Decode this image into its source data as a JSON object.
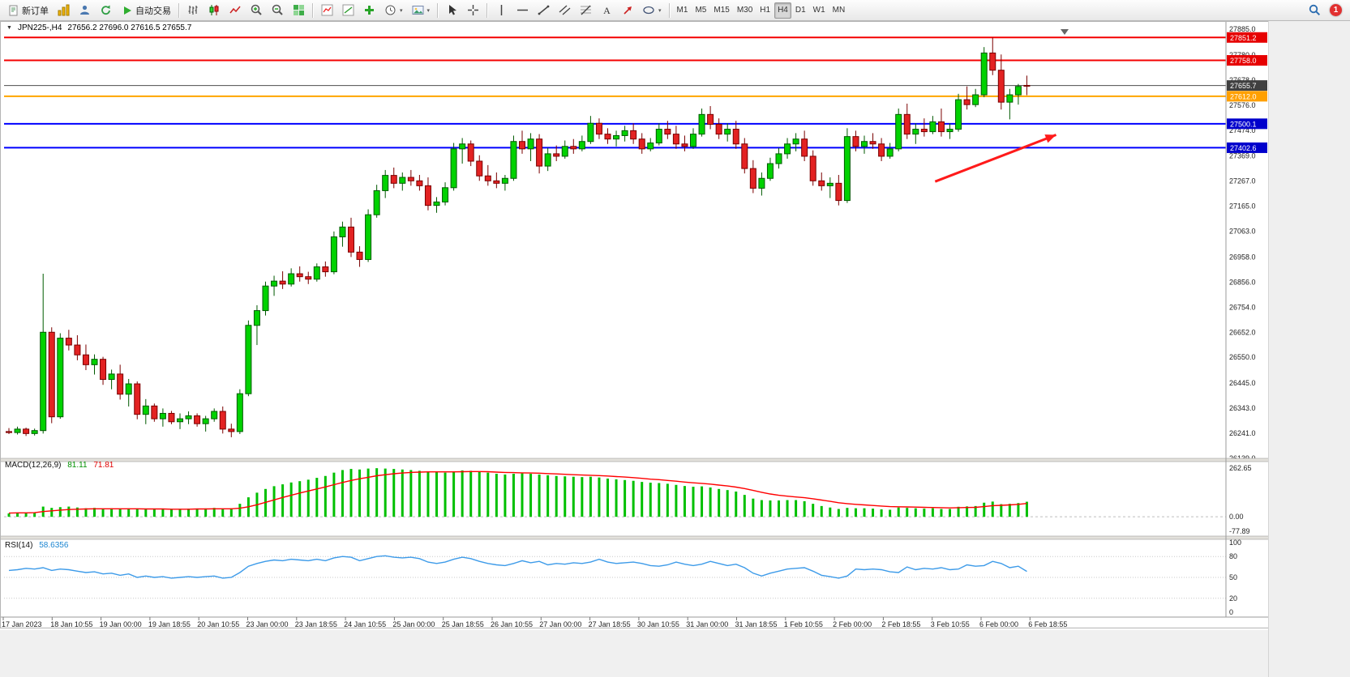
{
  "toolbar": {
    "new_order_label": "新订单",
    "auto_trading_label": "自动交易",
    "left_icons": [
      "new-chart-icon",
      "profiles-icon",
      "refresh-icon"
    ],
    "chart_type_icons": [
      "bars-chart-icon",
      "candlestick-chart-icon",
      "line-chart-icon"
    ],
    "zoom_icons": [
      "zoom-in-icon",
      "zoom-out-icon",
      "tile-windows-icon"
    ],
    "panel_icons": [
      "indicators-icon",
      "objects-icon",
      "add-indicator-icon",
      "periods-icon",
      "templates-icon"
    ],
    "pointer_icons": [
      "cursor-icon",
      "crosshair-icon"
    ],
    "drawing_icons": [
      "vertical-line-icon",
      "horizontal-line-icon",
      "trendline-icon",
      "channel-icon",
      "fibonacci-icon",
      "text-icon",
      "arrows-icon",
      "shapes-icon"
    ],
    "timeframes": [
      "M1",
      "M5",
      "M15",
      "M30",
      "H1",
      "H4",
      "D1",
      "W1",
      "MN"
    ],
    "active_timeframe": "H4",
    "right_icons": [
      "search-icon"
    ],
    "notification_count": "1"
  },
  "chart": {
    "title": "JPN225-,H4",
    "ohlc": "27656.2 27696.0 27616.5 27655.7"
  },
  "chart_data": {
    "type": "candlestick",
    "symbol": "JPN225-",
    "timeframe": "H4",
    "current_ohlc": {
      "open": 27656.2,
      "high": 27696.0,
      "low": 27616.5,
      "close": 27655.7
    },
    "y_axis": {
      "min": 26139.0,
      "max": 27885.0,
      "gridline_labels": [
        "27885.0",
        "27780.0",
        "27678.0",
        "27576.0",
        "27474.0",
        "27369.0",
        "27267.0",
        "27165.0",
        "27063.0",
        "26958.0",
        "26856.0",
        "26754.0",
        "26652.0",
        "26550.0",
        "26445.0",
        "26343.0",
        "26241.0",
        "26139.0"
      ]
    },
    "price_lines": [
      {
        "value": 27851.2,
        "label": "27851.2",
        "color": "#f40000",
        "badge": "#e60000",
        "width": 2
      },
      {
        "value": 27758.0,
        "label": "27758.0",
        "color": "#f40000",
        "badge": "#e60000",
        "width": 2
      },
      {
        "value": 27655.7,
        "label": "27655.7",
        "color": "#4d4d4d",
        "badge": "#404040",
        "width": 1,
        "style": "bid"
      },
      {
        "value": 27612.0,
        "label": "27612.0",
        "color": "#ffa500",
        "badge": "#ffa000",
        "width": 2
      },
      {
        "value": 27500.1,
        "label": "27500.1",
        "color": "#0000ff",
        "badge": "#0000cc",
        "width": 2
      },
      {
        "value": 27402.6,
        "label": "27402.6",
        "color": "#0000ff",
        "badge": "#0000cc",
        "width": 2
      }
    ],
    "colors": {
      "bull": "#00d200",
      "bull_border": "#005a00",
      "bear": "#e32222",
      "bear_border": "#7a0000",
      "macd": "#00c000",
      "signal": "#ff0000",
      "rsi": "#3d9be9"
    },
    "candles": [
      [
        26248,
        26262,
        26238,
        26244
      ],
      [
        26244,
        26268,
        26236,
        26258
      ],
      [
        26258,
        26264,
        26230,
        26240
      ],
      [
        26240,
        26260,
        26232,
        26252
      ],
      [
        26252,
        26890,
        26240,
        26652
      ],
      [
        26652,
        26672,
        26282,
        26308
      ],
      [
        26308,
        26648,
        26300,
        26628
      ],
      [
        26628,
        26662,
        26578,
        26600
      ],
      [
        26600,
        26640,
        26538,
        26560
      ],
      [
        26560,
        26602,
        26498,
        26520
      ],
      [
        26520,
        26562,
        26480,
        26542
      ],
      [
        26542,
        26552,
        26438,
        26460
      ],
      [
        26460,
        26500,
        26420,
        26482
      ],
      [
        26482,
        26520,
        26378,
        26400
      ],
      [
        26400,
        26462,
        26350,
        26442
      ],
      [
        26442,
        26452,
        26298,
        26318
      ],
      [
        26318,
        26380,
        26278,
        26352
      ],
      [
        26352,
        26362,
        26288,
        26300
      ],
      [
        26300,
        26342,
        26268,
        26322
      ],
      [
        26322,
        26332,
        26278,
        26288
      ],
      [
        26288,
        26322,
        26258,
        26300
      ],
      [
        26300,
        26330,
        26278,
        26312
      ],
      [
        26312,
        26322,
        26268,
        26280
      ],
      [
        26280,
        26312,
        26248,
        26300
      ],
      [
        26300,
        26342,
        26288,
        26330
      ],
      [
        26330,
        26350,
        26240,
        26258
      ],
      [
        26258,
        26280,
        26225,
        26248
      ],
      [
        26248,
        26420,
        26238,
        26402
      ],
      [
        26402,
        26700,
        26392,
        26680
      ],
      [
        26680,
        26762,
        26600,
        26740
      ],
      [
        26740,
        26858,
        26720,
        26840
      ],
      [
        26840,
        26882,
        26800,
        26860
      ],
      [
        26860,
        26900,
        26828,
        26848
      ],
      [
        26848,
        26912,
        26838,
        26890
      ],
      [
        26890,
        26920,
        26858,
        26878
      ],
      [
        26878,
        26898,
        26848,
        26868
      ],
      [
        26868,
        26932,
        26858,
        26918
      ],
      [
        26918,
        26940,
        26878,
        26898
      ],
      [
        26898,
        27062,
        26888,
        27040
      ],
      [
        27040,
        27102,
        27000,
        27080
      ],
      [
        27080,
        27118,
        26958,
        26978
      ],
      [
        26978,
        27002,
        26918,
        26948
      ],
      [
        26948,
        27152,
        26938,
        27130
      ],
      [
        27130,
        27252,
        27118,
        27228
      ],
      [
        27228,
        27312,
        27198,
        27290
      ],
      [
        27290,
        27322,
        27238,
        27258
      ],
      [
        27258,
        27302,
        27228,
        27282
      ],
      [
        27282,
        27312,
        27248,
        27268
      ],
      [
        27268,
        27292,
        27228,
        27248
      ],
      [
        27248,
        27282,
        27148,
        27168
      ],
      [
        27168,
        27202,
        27138,
        27182
      ],
      [
        27182,
        27262,
        27168,
        27240
      ],
      [
        27240,
        27422,
        27228,
        27398
      ],
      [
        27398,
        27442,
        27338,
        27418
      ],
      [
        27418,
        27432,
        27328,
        27348
      ],
      [
        27348,
        27372,
        27268,
        27288
      ],
      [
        27288,
        27332,
        27248,
        27268
      ],
      [
        27268,
        27302,
        27238,
        27258
      ],
      [
        27258,
        27292,
        27228,
        27278
      ],
      [
        27278,
        27452,
        27268,
        27428
      ],
      [
        27428,
        27472,
        27378,
        27398
      ],
      [
        27398,
        27462,
        27348,
        27438
      ],
      [
        27438,
        27458,
        27298,
        27328
      ],
      [
        27328,
        27402,
        27308,
        27378
      ],
      [
        27378,
        27412,
        27348,
        27368
      ],
      [
        27368,
        27432,
        27358,
        27408
      ],
      [
        27408,
        27438,
        27378,
        27398
      ],
      [
        27398,
        27452,
        27388,
        27428
      ],
      [
        27428,
        27532,
        27418,
        27502
      ],
      [
        27502,
        27522,
        27438,
        27458
      ],
      [
        27458,
        27482,
        27418,
        27438
      ],
      [
        27438,
        27472,
        27408,
        27452
      ],
      [
        27452,
        27492,
        27428,
        27472
      ],
      [
        27472,
        27502,
        27418,
        27438
      ],
      [
        27438,
        27462,
        27378,
        27398
      ],
      [
        27398,
        27442,
        27388,
        27422
      ],
      [
        27422,
        27502,
        27412,
        27478
      ],
      [
        27478,
        27512,
        27438,
        27458
      ],
      [
        27458,
        27492,
        27398,
        27418
      ],
      [
        27418,
        27452,
        27388,
        27408
      ],
      [
        27408,
        27482,
        27398,
        27458
      ],
      [
        27458,
        27562,
        27448,
        27538
      ],
      [
        27538,
        27572,
        27478,
        27498
      ],
      [
        27498,
        27522,
        27438,
        27458
      ],
      [
        27458,
        27502,
        27428,
        27478
      ],
      [
        27478,
        27512,
        27398,
        27418
      ],
      [
        27418,
        27442,
        27298,
        27318
      ],
      [
        27318,
        27352,
        27218,
        27238
      ],
      [
        27238,
        27302,
        27208,
        27278
      ],
      [
        27278,
        27362,
        27268,
        27338
      ],
      [
        27338,
        27402,
        27318,
        27378
      ],
      [
        27378,
        27442,
        27358,
        27418
      ],
      [
        27418,
        27462,
        27388,
        27438
      ],
      [
        27438,
        27472,
        27348,
        27368
      ],
      [
        27368,
        27392,
        27248,
        27268
      ],
      [
        27268,
        27302,
        27228,
        27248
      ],
      [
        27248,
        27282,
        27198,
        27258
      ],
      [
        27258,
        27292,
        27168,
        27188
      ],
      [
        27188,
        27482,
        27178,
        27448
      ],
      [
        27448,
        27472,
        27388,
        27408
      ],
      [
        27408,
        27452,
        27378,
        27428
      ],
      [
        27428,
        27462,
        27398,
        27418
      ],
      [
        27418,
        27442,
        27348,
        27368
      ],
      [
        27368,
        27422,
        27358,
        27398
      ],
      [
        27398,
        27562,
        27388,
        27538
      ],
      [
        27538,
        27582,
        27438,
        27458
      ],
      [
        27458,
        27502,
        27418,
        27478
      ],
      [
        27478,
        27522,
        27448,
        27468
      ],
      [
        27468,
        27532,
        27458,
        27508
      ],
      [
        27508,
        27562,
        27448,
        27468
      ],
      [
        27468,
        27502,
        27438,
        27478
      ],
      [
        27478,
        27622,
        27468,
        27598
      ],
      [
        27598,
        27652,
        27558,
        27578
      ],
      [
        27578,
        27642,
        27568,
        27618
      ],
      [
        27618,
        27812,
        27608,
        27788
      ],
      [
        27788,
        27851.2,
        27698,
        27718
      ],
      [
        27718,
        27782,
        27558,
        27588
      ],
      [
        27588,
        27642,
        27518,
        27618
      ],
      [
        27618,
        27662,
        27578,
        27652
      ],
      [
        27656.2,
        27696,
        27616.5,
        27655.7
      ]
    ],
    "x_labels": [
      "17 Jan 2023",
      "18 Jan 10:55",
      "19 Jan 00:00",
      "19 Jan 18:55",
      "20 Jan 10:55",
      "23 Jan 00:00",
      "23 Jan 18:55",
      "24 Jan 10:55",
      "25 Jan 00:00",
      "25 Jan 18:55",
      "26 Jan 10:55",
      "27 Jan 00:00",
      "27 Jan 18:55",
      "30 Jan 10:55",
      "31 Jan 00:00",
      "31 Jan 18:55",
      "1 Feb 10:55",
      "2 Feb 00:00",
      "2 Feb 18:55",
      "3 Feb 10:55",
      "6 Feb 00:00",
      "6 Feb 18:55"
    ],
    "macd": {
      "label": "MACD(12,26,9)",
      "value_main": "81.11",
      "value_signal": "71.81",
      "max": 262.65,
      "min": -77.89,
      "scale_labels": [
        "262.65",
        "0.00",
        "-77.89"
      ],
      "histogram": [
        18,
        22,
        20,
        24,
        55,
        48,
        52,
        55,
        50,
        46,
        48,
        44,
        46,
        42,
        45,
        40,
        42,
        40,
        41,
        40,
        42,
        44,
        43,
        45,
        48,
        44,
        46,
        70,
        105,
        130,
        150,
        165,
        175,
        185,
        192,
        200,
        210,
        220,
        238,
        252,
        258,
        255,
        260,
        262,
        260,
        258,
        255,
        252,
        248,
        244,
        240,
        238,
        242,
        250,
        248,
        244,
        238,
        232,
        228,
        232,
        234,
        232,
        228,
        224,
        220,
        218,
        216,
        214,
        216,
        212,
        206,
        202,
        198,
        194,
        188,
        184,
        182,
        178,
        172,
        166,
        162,
        164,
        158,
        150,
        144,
        136,
        118,
        98,
        90,
        88,
        88,
        90,
        90,
        84,
        70,
        58,
        50,
        42,
        48,
        46,
        46,
        44,
        40,
        38,
        50,
        48,
        46,
        44,
        46,
        42,
        42,
        54,
        56,
        58,
        76,
        82,
        68,
        70,
        74,
        81.11
      ],
      "signal": [
        20,
        21,
        21,
        22,
        28,
        32,
        36,
        39,
        41,
        42,
        43,
        43,
        43,
        43,
        43,
        43,
        42,
        42,
        42,
        41,
        41,
        41,
        42,
        42,
        43,
        43,
        43,
        46,
        54,
        65,
        78,
        91,
        104,
        116,
        128,
        139,
        150,
        161,
        173,
        185,
        196,
        205,
        213,
        221,
        227,
        232,
        236,
        239,
        241,
        242,
        242,
        242,
        242,
        243,
        244,
        244,
        243,
        241,
        239,
        238,
        237,
        236,
        235,
        233,
        231,
        229,
        227,
        225,
        224,
        222,
        220,
        217,
        214,
        211,
        207,
        203,
        200,
        196,
        192,
        187,
        183,
        180,
        176,
        171,
        166,
        160,
        152,
        142,
        132,
        123,
        116,
        111,
        107,
        103,
        97,
        90,
        83,
        76,
        71,
        67,
        64,
        61,
        58,
        55,
        54,
        53,
        52,
        51,
        50,
        49,
        48,
        49,
        50,
        51,
        55,
        60,
        62,
        64,
        67,
        71.81
      ]
    },
    "rsi": {
      "label": "RSI(14)",
      "value": "58.6356",
      "levels": [
        80,
        50,
        20
      ],
      "scale_labels": [
        "100",
        "80",
        "50",
        "20",
        "0"
      ],
      "values": [
        60,
        61,
        63,
        62,
        64,
        60,
        62,
        61,
        59,
        57,
        58,
        55,
        56,
        53,
        55,
        50,
        52,
        50,
        51,
        49,
        50,
        51,
        50,
        51,
        52,
        49,
        50,
        57,
        66,
        70,
        73,
        75,
        74,
        76,
        75,
        74,
        76,
        74,
        78,
        80,
        79,
        74,
        77,
        80,
        81,
        79,
        78,
        79,
        77,
        72,
        70,
        72,
        76,
        79,
        77,
        73,
        70,
        68,
        67,
        70,
        74,
        71,
        73,
        68,
        70,
        69,
        71,
        70,
        72,
        76,
        72,
        70,
        71,
        72,
        70,
        67,
        66,
        68,
        72,
        69,
        67,
        69,
        73,
        70,
        67,
        69,
        64,
        56,
        52,
        56,
        59,
        62,
        63,
        64,
        59,
        53,
        51,
        49,
        52,
        62,
        61,
        62,
        61,
        58,
        57,
        65,
        61,
        63,
        62,
        64,
        61,
        62,
        68,
        66,
        67,
        73,
        70,
        64,
        66,
        58.64
      ]
    },
    "annotation_arrow": {
      "from": {
        "x": 0.762,
        "price": 27265
      },
      "to": {
        "x": 0.861,
        "price": 27455
      },
      "color": "#ff1a1a"
    }
  }
}
